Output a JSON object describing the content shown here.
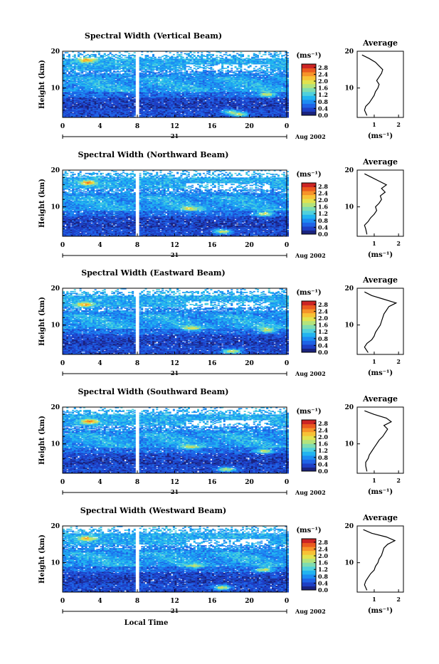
{
  "figure": {
    "xlabel": "Local Time",
    "date_label": "Aug 2002",
    "day_label": "21",
    "colorbar_unit": "(ms⁻¹)",
    "colorscale": [
      "#1a237e",
      "#1e3fc4",
      "#1f63e6",
      "#1c8cf2",
      "#22b4f0",
      "#4fd0dc",
      "#7fdcb0",
      "#b3e37c",
      "#e2e24e",
      "#f7c236",
      "#f69329",
      "#ea5a1f",
      "#cc2424"
    ]
  },
  "chart_data": [
    {
      "type": "heatmap",
      "title": "Spectral Width (Vertical Beam)",
      "xlabel": "",
      "ylabel": "Height (km)",
      "x_ticks": [
        "0",
        "4",
        "8",
        "12",
        "16",
        "20",
        "0"
      ],
      "y_ticks": [
        "10",
        "20"
      ],
      "xlim": [
        0,
        24
      ],
      "ylim": [
        2,
        20
      ],
      "colorbar": {
        "label": "(ms⁻¹)",
        "ticks": [
          "0.0",
          "0.4",
          "0.8",
          "1.2",
          "1.6",
          "2.0",
          "2.4",
          "2.8"
        ],
        "range": [
          0,
          3.0
        ]
      },
      "data_gap_hours": [
        7.7,
        8.1
      ],
      "profile": {
        "title": "Average",
        "xlabel": "(ms⁻¹)",
        "x_ticks": [
          "1",
          "2"
        ],
        "y_ticks": [
          "10",
          "20"
        ],
        "xlim": [
          0.3,
          2.2
        ],
        "ylim": [
          2,
          20
        ],
        "heights": [
          2.5,
          4,
          5,
          6,
          7,
          8,
          9,
          10,
          11,
          12,
          13,
          14,
          15,
          16,
          17,
          18,
          19
        ],
        "values": [
          0.7,
          0.6,
          0.65,
          0.8,
          0.9,
          1.0,
          1.05,
          1.15,
          1.2,
          1.1,
          1.2,
          1.3,
          1.35,
          1.2,
          1.05,
          0.8,
          0.5
        ]
      }
    },
    {
      "type": "heatmap",
      "title": "Spectral Width (Northward Beam)",
      "xlabel": "",
      "ylabel": "Height (km)",
      "x_ticks": [
        "0",
        "4",
        "8",
        "12",
        "16",
        "20",
        "0"
      ],
      "y_ticks": [
        "10",
        "20"
      ],
      "xlim": [
        0,
        24
      ],
      "ylim": [
        2,
        20
      ],
      "colorbar": {
        "label": "(ms⁻¹)",
        "ticks": [
          "0.0",
          "0.4",
          "0.8",
          "1.2",
          "1.6",
          "2.0",
          "2.4",
          "2.8"
        ],
        "range": [
          0,
          3.0
        ]
      },
      "data_gap_hours": [
        7.7,
        8.1
      ],
      "profile": {
        "title": "Average",
        "xlabel": "(ms⁻¹)",
        "x_ticks": [
          "1",
          "2"
        ],
        "y_ticks": [
          "10",
          "20"
        ],
        "xlim": [
          0.3,
          2.2
        ],
        "ylim": [
          2,
          20
        ],
        "heights": [
          2.5,
          4,
          5,
          6,
          7,
          8,
          9,
          10,
          11,
          12,
          13,
          14,
          15,
          16,
          17,
          18,
          19
        ],
        "values": [
          0.7,
          0.65,
          0.6,
          0.75,
          0.85,
          1.0,
          1.1,
          1.05,
          1.2,
          1.3,
          1.25,
          1.45,
          1.3,
          1.5,
          1.2,
          0.9,
          0.6
        ]
      }
    },
    {
      "type": "heatmap",
      "title": "Spectral Width (Eastward Beam)",
      "xlabel": "",
      "ylabel": "Height (km)",
      "x_ticks": [
        "0",
        "4",
        "8",
        "12",
        "16",
        "20",
        "0"
      ],
      "y_ticks": [
        "10",
        "20"
      ],
      "xlim": [
        0,
        24
      ],
      "ylim": [
        2,
        20
      ],
      "colorbar": {
        "label": "(ms⁻¹)",
        "ticks": [
          "0.0",
          "0.4",
          "0.8",
          "1.2",
          "1.6",
          "2.0",
          "2.4",
          "2.8"
        ],
        "range": [
          0,
          3.0
        ]
      },
      "data_gap_hours": [
        7.7,
        8.1
      ],
      "profile": {
        "title": "Average",
        "xlabel": "(ms⁻¹)",
        "x_ticks": [
          "1",
          "2"
        ],
        "y_ticks": [
          "10",
          "20"
        ],
        "xlim": [
          0.3,
          2.2
        ],
        "ylim": [
          2,
          20
        ],
        "heights": [
          2.5,
          4,
          5,
          6,
          7,
          8,
          9,
          10,
          11,
          12,
          13,
          14,
          15,
          16,
          17,
          18,
          19
        ],
        "values": [
          0.75,
          0.6,
          0.7,
          0.9,
          1.0,
          1.05,
          1.15,
          1.25,
          1.3,
          1.35,
          1.4,
          1.5,
          1.6,
          1.9,
          1.4,
          0.9,
          0.6
        ]
      }
    },
    {
      "type": "heatmap",
      "title": "Spectral Width (Southward Beam)",
      "xlabel": "",
      "ylabel": "Height (km)",
      "x_ticks": [
        "0",
        "4",
        "8",
        "12",
        "16",
        "20",
        "0"
      ],
      "y_ticks": [
        "10",
        "20"
      ],
      "xlim": [
        0,
        24
      ],
      "ylim": [
        2,
        20
      ],
      "colorbar": {
        "label": "(ms⁻¹)",
        "ticks": [
          "0.0",
          "0.4",
          "0.8",
          "1.2",
          "1.6",
          "2.0",
          "2.4",
          "2.8"
        ],
        "range": [
          0,
          3.0
        ]
      },
      "data_gap_hours": [
        7.7,
        8.1
      ],
      "profile": {
        "title": "Average",
        "xlabel": "(ms⁻¹)",
        "x_ticks": [
          "1",
          "2"
        ],
        "y_ticks": [
          "10",
          "20"
        ],
        "xlim": [
          0.3,
          2.2
        ],
        "ylim": [
          2,
          20
        ],
        "heights": [
          2.5,
          4,
          5,
          6,
          7,
          8,
          9,
          10,
          11,
          12,
          13,
          14,
          15,
          16,
          17,
          18,
          19
        ],
        "values": [
          0.7,
          0.65,
          0.65,
          0.75,
          0.8,
          0.9,
          1.0,
          1.1,
          1.2,
          1.35,
          1.45,
          1.55,
          1.4,
          1.7,
          1.5,
          1.0,
          0.6
        ]
      }
    },
    {
      "type": "heatmap",
      "title": "Spectral Width (Westward Beam)",
      "xlabel": "Local Time",
      "ylabel": "Height (km)",
      "x_ticks": [
        "0",
        "4",
        "8",
        "12",
        "16",
        "20",
        "0"
      ],
      "y_ticks": [
        "10",
        "20"
      ],
      "xlim": [
        0,
        24
      ],
      "ylim": [
        2,
        20
      ],
      "colorbar": {
        "label": "(ms⁻¹)",
        "ticks": [
          "0.0",
          "0.4",
          "0.8",
          "1.2",
          "1.6",
          "2.0",
          "2.4",
          "2.8"
        ],
        "range": [
          0,
          3.0
        ]
      },
      "data_gap_hours": [
        7.7,
        8.1
      ],
      "profile": {
        "title": "Average",
        "xlabel": "(ms⁻¹)",
        "x_ticks": [
          "1",
          "2"
        ],
        "y_ticks": [
          "10",
          "20"
        ],
        "xlim": [
          0.3,
          2.2
        ],
        "ylim": [
          2,
          20
        ],
        "heights": [
          2.5,
          4,
          5,
          6,
          7,
          8,
          9,
          10,
          11,
          12,
          13,
          14,
          15,
          16,
          17,
          18,
          19
        ],
        "values": [
          0.7,
          0.6,
          0.65,
          0.75,
          0.85,
          1.0,
          1.05,
          1.15,
          1.2,
          1.3,
          1.35,
          1.4,
          1.55,
          1.85,
          1.5,
          0.9,
          0.55
        ]
      }
    }
  ]
}
